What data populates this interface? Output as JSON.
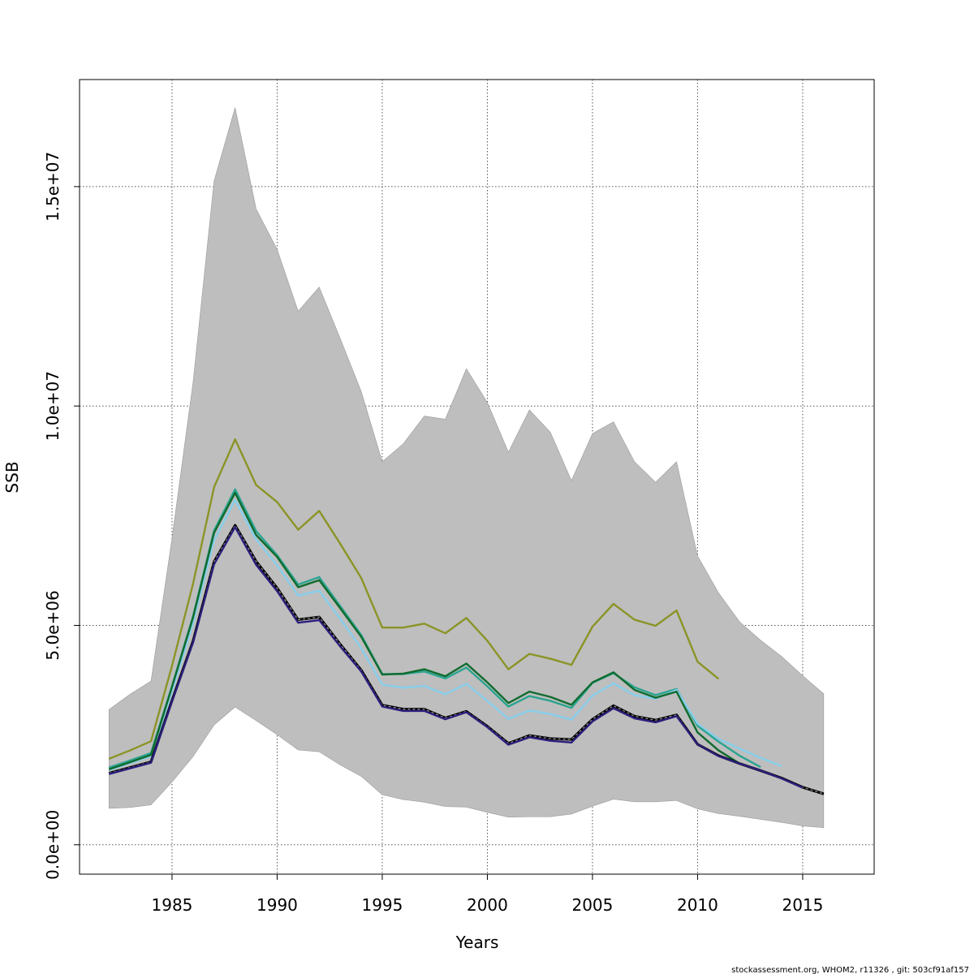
{
  "chart_data": {
    "type": "line",
    "xlabel": "Years",
    "ylabel": "SSB",
    "xlim": [
      1980.6,
      2018.4
    ],
    "ylim": [
      -670000,
      17440000
    ],
    "x_ticks": [
      {
        "value": 1985,
        "label": "1985"
      },
      {
        "value": 1990,
        "label": "1990"
      },
      {
        "value": 1995,
        "label": "1995"
      },
      {
        "value": 2000,
        "label": "2000"
      },
      {
        "value": 2005,
        "label": "2005"
      },
      {
        "value": 2010,
        "label": "2010"
      },
      {
        "value": 2015,
        "label": "2015"
      }
    ],
    "y_ticks": [
      {
        "value": 0,
        "label": "0.0e+00"
      },
      {
        "value": 5000000,
        "label": "5.0e+06"
      },
      {
        "value": 10000000,
        "label": "1.0e+07"
      },
      {
        "value": 15000000,
        "label": "1.5e+07"
      }
    ],
    "grid": true,
    "band": {
      "color": "#bebebe",
      "x": [
        1982,
        1983,
        1984,
        1985,
        1986,
        1987,
        1988,
        1989,
        1990,
        1991,
        1992,
        1993,
        1994,
        1995,
        1996,
        1997,
        1998,
        1999,
        2000,
        2001,
        2002,
        2003,
        2004,
        2005,
        2006,
        2007,
        2008,
        2009,
        2010,
        2011,
        2012,
        2013,
        2014,
        2015,
        2016
      ],
      "upper": [
        3080000,
        3430000,
        3730000,
        6990000,
        10540000,
        15130000,
        16800000,
        14490000,
        13570000,
        12160000,
        12710000,
        11540000,
        10330000,
        8730000,
        9140000,
        9770000,
        9700000,
        10850000,
        10080000,
        8950000,
        9910000,
        9400000,
        8300000,
        9370000,
        9640000,
        8730000,
        8260000,
        8730000,
        6580000,
        5740000,
        5080000,
        4660000,
        4290000,
        3850000,
        3440000
      ],
      "lower": [
        830000,
        850000,
        910000,
        1430000,
        2010000,
        2730000,
        3140000,
        2830000,
        2510000,
        2160000,
        2120000,
        1820000,
        1560000,
        1140000,
        1030000,
        970000,
        870000,
        860000,
        740000,
        630000,
        640000,
        640000,
        700000,
        880000,
        1040000,
        980000,
        980000,
        1010000,
        820000,
        710000,
        650000,
        580000,
        510000,
        430000,
        390000
      ]
    },
    "series": [
      {
        "color": "#8b9426",
        "values": [
          [
            1982,
            1960000
          ],
          [
            1983,
            2150000
          ],
          [
            1984,
            2360000
          ],
          [
            1985,
            4080000
          ],
          [
            1986,
            5950000
          ],
          [
            1987,
            8150000
          ],
          [
            1988,
            9240000
          ],
          [
            1989,
            8200000
          ],
          [
            1990,
            7810000
          ],
          [
            1991,
            7180000
          ],
          [
            1992,
            7610000
          ],
          [
            1993,
            6860000
          ],
          [
            1994,
            6080000
          ],
          [
            1995,
            4950000
          ],
          [
            1996,
            4950000
          ],
          [
            1997,
            5040000
          ],
          [
            1998,
            4820000
          ],
          [
            1999,
            5170000
          ],
          [
            2000,
            4650000
          ],
          [
            2001,
            4000000
          ],
          [
            2002,
            4350000
          ],
          [
            2003,
            4240000
          ],
          [
            2004,
            4100000
          ],
          [
            2005,
            4970000
          ],
          [
            2006,
            5490000
          ],
          [
            2007,
            5130000
          ],
          [
            2008,
            4990000
          ],
          [
            2009,
            5340000
          ],
          [
            2010,
            4170000
          ],
          [
            2011,
            3780000
          ]
        ]
      },
      {
        "color": "#2aa38f",
        "values": [
          [
            1982,
            1760000
          ],
          [
            1983,
            1920000
          ],
          [
            1984,
            2090000
          ],
          [
            1985,
            3620000
          ],
          [
            1986,
            5210000
          ],
          [
            1987,
            7160000
          ],
          [
            1988,
            8100000
          ],
          [
            1989,
            7150000
          ],
          [
            1990,
            6600000
          ],
          [
            1991,
            5930000
          ],
          [
            1992,
            6100000
          ],
          [
            1993,
            5440000
          ],
          [
            1994,
            4780000
          ],
          [
            1995,
            3890000
          ],
          [
            1996,
            3890000
          ],
          [
            1997,
            3950000
          ],
          [
            1998,
            3790000
          ],
          [
            1999,
            4040000
          ],
          [
            2000,
            3610000
          ],
          [
            2001,
            3150000
          ],
          [
            2002,
            3390000
          ],
          [
            2003,
            3280000
          ],
          [
            2004,
            3120000
          ],
          [
            2005,
            3690000
          ],
          [
            2006,
            3910000
          ],
          [
            2007,
            3590000
          ],
          [
            2008,
            3410000
          ],
          [
            2009,
            3550000
          ],
          [
            2010,
            2710000
          ],
          [
            2011,
            2350000
          ],
          [
            2012,
            2030000
          ],
          [
            2013,
            1770000
          ]
        ]
      },
      {
        "color": "#87ceeb",
        "values": [
          [
            1982,
            1700000
          ],
          [
            1983,
            1860000
          ],
          [
            1984,
            2020000
          ],
          [
            1985,
            3500000
          ],
          [
            1986,
            5050000
          ],
          [
            1987,
            6940000
          ],
          [
            1988,
            7860000
          ],
          [
            1989,
            6960000
          ],
          [
            1990,
            6370000
          ],
          [
            1991,
            5680000
          ],
          [
            1992,
            5790000
          ],
          [
            1993,
            5150000
          ],
          [
            1994,
            4480000
          ],
          [
            1995,
            3650000
          ],
          [
            1996,
            3580000
          ],
          [
            1997,
            3620000
          ],
          [
            1998,
            3430000
          ],
          [
            1999,
            3670000
          ],
          [
            2000,
            3280000
          ],
          [
            2001,
            2870000
          ],
          [
            2002,
            3060000
          ],
          [
            2003,
            2980000
          ],
          [
            2004,
            2850000
          ],
          [
            2005,
            3400000
          ],
          [
            2006,
            3680000
          ],
          [
            2007,
            3410000
          ],
          [
            2008,
            3330000
          ],
          [
            2009,
            3530000
          ],
          [
            2010,
            2760000
          ],
          [
            2011,
            2410000
          ],
          [
            2012,
            2190000
          ],
          [
            2013,
            1980000
          ],
          [
            2014,
            1790000
          ]
        ]
      },
      {
        "color": "#0f6b2e",
        "values": [
          [
            1982,
            1720000
          ],
          [
            1983,
            1880000
          ],
          [
            1984,
            2050000
          ],
          [
            1985,
            3600000
          ],
          [
            1986,
            5180000
          ],
          [
            1987,
            7110000
          ],
          [
            1988,
            8020000
          ],
          [
            1989,
            7060000
          ],
          [
            1990,
            6560000
          ],
          [
            1991,
            5870000
          ],
          [
            1992,
            6030000
          ],
          [
            1993,
            5390000
          ],
          [
            1994,
            4740000
          ],
          [
            1995,
            3880000
          ],
          [
            1996,
            3900000
          ],
          [
            1997,
            4000000
          ],
          [
            1998,
            3840000
          ],
          [
            1999,
            4130000
          ],
          [
            2000,
            3700000
          ],
          [
            2001,
            3230000
          ],
          [
            2002,
            3490000
          ],
          [
            2003,
            3370000
          ],
          [
            2004,
            3190000
          ],
          [
            2005,
            3700000
          ],
          [
            2006,
            3930000
          ],
          [
            2007,
            3530000
          ],
          [
            2008,
            3350000
          ],
          [
            2009,
            3490000
          ],
          [
            2010,
            2560000
          ],
          [
            2011,
            2150000
          ],
          [
            2012,
            1850000
          ]
        ]
      },
      {
        "color": "#000000",
        "dashed": true,
        "values": [
          [
            1982,
            1630000
          ],
          [
            1983,
            1760000
          ],
          [
            1984,
            1890000
          ],
          [
            1985,
            3290000
          ],
          [
            1986,
            4640000
          ],
          [
            1987,
            6450000
          ],
          [
            1988,
            7280000
          ],
          [
            1989,
            6460000
          ],
          [
            1990,
            5850000
          ],
          [
            1991,
            5130000
          ],
          [
            1992,
            5190000
          ],
          [
            1993,
            4570000
          ],
          [
            1994,
            3980000
          ],
          [
            1995,
            3180000
          ],
          [
            1996,
            3090000
          ],
          [
            1997,
            3090000
          ],
          [
            1998,
            2890000
          ],
          [
            1999,
            3040000
          ],
          [
            2000,
            2700000
          ],
          [
            2001,
            2310000
          ],
          [
            2002,
            2490000
          ],
          [
            2003,
            2420000
          ],
          [
            2004,
            2400000
          ],
          [
            2005,
            2860000
          ],
          [
            2006,
            3170000
          ],
          [
            2007,
            2930000
          ],
          [
            2008,
            2840000
          ],
          [
            2009,
            2960000
          ],
          [
            2010,
            2290000
          ],
          [
            2011,
            2030000
          ],
          [
            2012,
            1850000
          ],
          [
            2013,
            1690000
          ],
          [
            2014,
            1520000
          ],
          [
            2015,
            1310000
          ],
          [
            2016,
            1160000
          ]
        ]
      },
      {
        "color": "#2b1f7d",
        "values": [
          [
            1982,
            1610000
          ],
          [
            1983,
            1740000
          ],
          [
            1984,
            1870000
          ],
          [
            1985,
            3270000
          ],
          [
            1986,
            4610000
          ],
          [
            1987,
            6390000
          ],
          [
            1988,
            7240000
          ],
          [
            1989,
            6380000
          ],
          [
            1990,
            5780000
          ],
          [
            1991,
            5060000
          ],
          [
            1992,
            5120000
          ],
          [
            1993,
            4520000
          ],
          [
            1994,
            3950000
          ],
          [
            1995,
            3150000
          ],
          [
            1996,
            3050000
          ],
          [
            1997,
            3050000
          ],
          [
            1998,
            2860000
          ],
          [
            1999,
            3020000
          ],
          [
            2000,
            2680000
          ],
          [
            2001,
            2280000
          ],
          [
            2002,
            2450000
          ],
          [
            2003,
            2370000
          ],
          [
            2004,
            2330000
          ],
          [
            2005,
            2810000
          ],
          [
            2006,
            3110000
          ],
          [
            2007,
            2880000
          ],
          [
            2008,
            2790000
          ],
          [
            2009,
            2930000
          ],
          [
            2010,
            2290000
          ],
          [
            2011,
            2020000
          ],
          [
            2012,
            1850000
          ],
          [
            2013,
            1690000
          ],
          [
            2014,
            1510000
          ],
          [
            2015,
            1300000
          ]
        ]
      }
    ]
  },
  "footer": "stockassessment.org, WHOM2, r11326 , git: 503cf91af157"
}
